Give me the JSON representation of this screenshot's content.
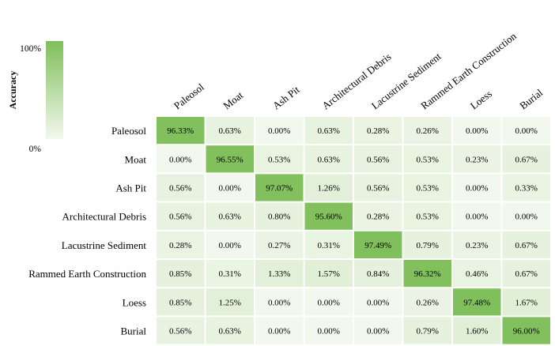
{
  "chart_data": {
    "type": "heatmap",
    "title": "",
    "colorbar": {
      "label": "Accuracy",
      "max_label": "100%",
      "min_label": "0%",
      "low_color": "#f3f8ee",
      "high_color": "#7fbf5a"
    },
    "rows": [
      "Paleosol",
      "Moat",
      "Ash Pit",
      "Architectural Debris",
      "Lacustrine Sediment",
      "Rammed Earth Construction",
      "Loess",
      "Burial"
    ],
    "columns": [
      "Paleosol",
      "Moat",
      "Ash Pit",
      "Architectural Debris",
      "Lacustrine Sediment",
      "Rammed Earth Construction",
      "Loess",
      "Burial"
    ],
    "values": [
      [
        96.33,
        0.63,
        0.0,
        0.63,
        0.28,
        0.26,
        0.0,
        0.0
      ],
      [
        0.0,
        96.55,
        0.53,
        0.63,
        0.56,
        0.53,
        0.23,
        0.67
      ],
      [
        0.56,
        0.0,
        97.07,
        1.26,
        0.56,
        0.53,
        0.0,
        0.33
      ],
      [
        0.56,
        0.63,
        0.8,
        95.6,
        0.28,
        0.53,
        0.0,
        0.0
      ],
      [
        0.28,
        0.0,
        0.27,
        0.31,
        97.49,
        0.79,
        0.23,
        0.67
      ],
      [
        0.85,
        0.31,
        1.33,
        1.57,
        0.84,
        96.32,
        0.46,
        0.67
      ],
      [
        0.85,
        1.25,
        0.0,
        0.0,
        0.0,
        0.26,
        97.48,
        1.67
      ],
      [
        0.56,
        0.63,
        0.0,
        0.0,
        0.0,
        0.79,
        1.6,
        96.0
      ]
    ],
    "labels": [
      [
        "96.33%",
        "0.63%",
        "0.00%",
        "0.63%",
        "0.28%",
        "0.26%",
        "0.00%",
        "0.00%"
      ],
      [
        "0.00%",
        "96.55%",
        "0.53%",
        "0.63%",
        "0.56%",
        "0.53%",
        "0.23%",
        "0.67%"
      ],
      [
        "0.56%",
        "0.00%",
        "97.07%",
        "1.26%",
        "0.56%",
        "0.53%",
        "0.00%",
        "0.33%"
      ],
      [
        "0.56%",
        "0.63%",
        "0.80%",
        "95.60%",
        "0.28%",
        "0.53%",
        "0.00%",
        "0.00%"
      ],
      [
        "0.28%",
        "0.00%",
        "0.27%",
        "0.31%",
        "97.49%",
        "0.79%",
        "0.23%",
        "0.67%"
      ],
      [
        "0.85%",
        "0.31%",
        "1.33%",
        "1.57%",
        "0.84%",
        "96.32%",
        "0.46%",
        "0.67%"
      ],
      [
        "0.85%",
        "1.25%",
        "0.00%",
        "0.00%",
        "0.00%",
        "0.26%",
        "97.48%",
        "1.67%"
      ],
      [
        "0.56%",
        "0.63%",
        "0.00%",
        "0.00%",
        "0.00%",
        "0.79%",
        "1.60%",
        "96.00%"
      ]
    ]
  }
}
